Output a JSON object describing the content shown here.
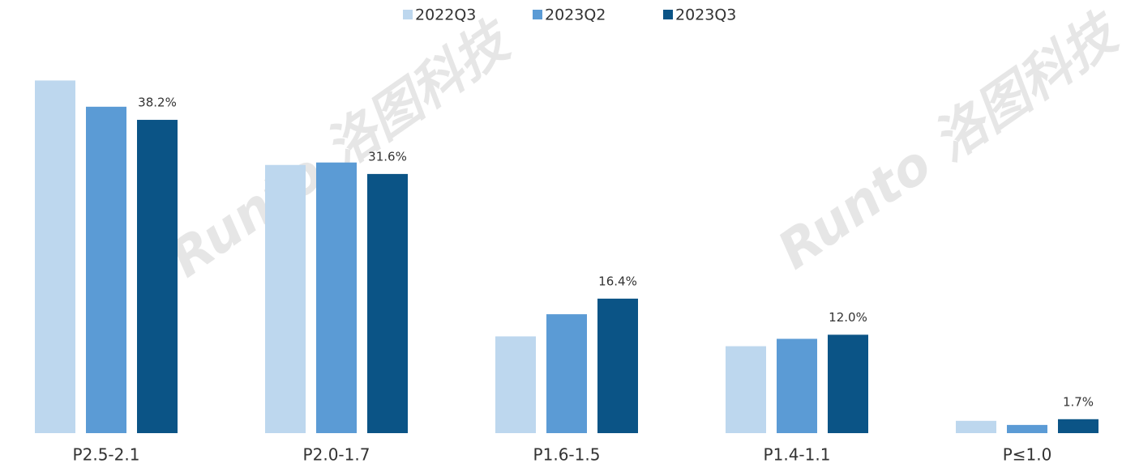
{
  "chart_data": {
    "type": "bar",
    "categories": [
      "P2.5-2.1",
      "P2.0-1.7",
      "P1.6-1.5",
      "P1.4-1.1",
      "P≤1.0"
    ],
    "series": [
      {
        "name": "2022Q3",
        "color": "#bdd7ee",
        "values": [
          43.0,
          32.7,
          11.8,
          10.6,
          1.5
        ]
      },
      {
        "name": "2023Q2",
        "color": "#5b9bd5",
        "values": [
          39.8,
          33.0,
          14.5,
          11.5,
          1.0
        ]
      },
      {
        "name": "2023Q3",
        "color": "#0b5486",
        "values": [
          38.2,
          31.6,
          16.4,
          12.0,
          1.7
        ],
        "value_labels": [
          "38.2%",
          "31.6%",
          "16.4%",
          "12.0%",
          "1.7%"
        ]
      }
    ],
    "legend": "top",
    "watermark": "Runto 洛图科技"
  }
}
